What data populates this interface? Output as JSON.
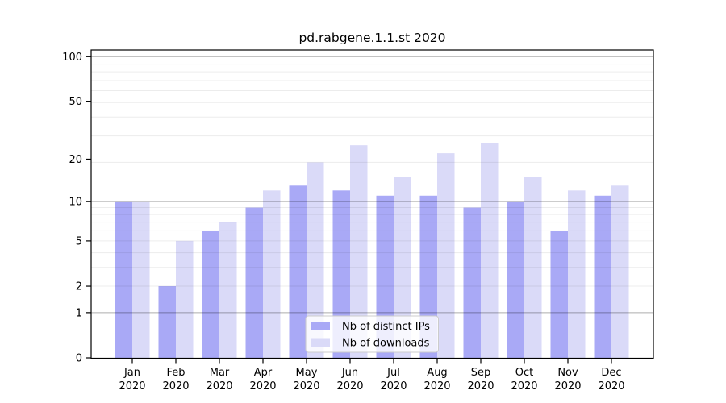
{
  "chart_data": {
    "type": "bar",
    "title": "pd.rabgene.1.1.st 2020",
    "x_months": [
      "Jan",
      "Feb",
      "Mar",
      "Apr",
      "May",
      "Jun",
      "Jul",
      "Aug",
      "Sep",
      "Oct",
      "Nov",
      "Dec"
    ],
    "x_year": "2020",
    "series": [
      {
        "name": "Nb of distinct IPs",
        "color": "#a9a9f6",
        "values": [
          10,
          2,
          6,
          9,
          13,
          12,
          11,
          11,
          9,
          10,
          6,
          11
        ]
      },
      {
        "name": "Nb of downloads",
        "color": "#dadaf8",
        "values": [
          10,
          5,
          7,
          12,
          19,
          25,
          15,
          22,
          26,
          15,
          12,
          13
        ]
      }
    ],
    "y_axis": {
      "scale": "log10(value+1)",
      "tick_labels": [
        100,
        50,
        20,
        10,
        5,
        2,
        1,
        0
      ],
      "major_gridlines": [
        1,
        10,
        100
      ],
      "minor_gridlines": [
        2,
        3,
        4,
        5,
        6,
        7,
        8,
        9,
        19,
        29,
        39,
        49,
        59,
        69,
        79,
        89
      ],
      "ylim": [
        0,
        112
      ]
    },
    "legend": {
      "position": "lower center",
      "entries": [
        "Nb of distinct IPs",
        "Nb of downloads"
      ]
    },
    "grid": true
  },
  "colors": {
    "background": "#ffffff",
    "spine": "#000000",
    "text": "#000000",
    "grid_minor": "rgba(0,0,0,0.075)",
    "grid_major": "rgba(0,0,0,0.32)",
    "legend_background": "rgba(255,255,255,0.8)",
    "legend_border": "#cccccc"
  }
}
